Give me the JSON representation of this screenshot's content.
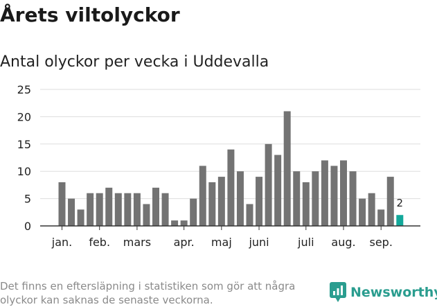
{
  "page": {
    "title": "Årets viltolyckor",
    "subtitle": "Antal olyckor per vecka i Uddevalla",
    "footnote": "Det finns en eftersläpning i statistiken som gör att några olyckor kan saknas de senaste veckorna."
  },
  "brand": {
    "name": "Newsworthy",
    "icon": "newsworthy-logo-icon",
    "color": "#2a9d8f"
  },
  "colors": {
    "bar": "#737373",
    "highlight": "#12a89a",
    "grid": "#dddddd",
    "axis": "#333333",
    "text": "#222222"
  },
  "chart_data": {
    "type": "bar",
    "title": "",
    "xlabel": "",
    "ylabel": "",
    "ylim": [
      0,
      25
    ],
    "yticks": [
      0,
      5,
      10,
      15,
      20,
      25
    ],
    "grid": true,
    "values": [
      8,
      5,
      3,
      6,
      6,
      7,
      6,
      6,
      6,
      4,
      7,
      6,
      1,
      1,
      5,
      11,
      8,
      9,
      14,
      10,
      4,
      9,
      15,
      13,
      21,
      10,
      8,
      10,
      12,
      11,
      12,
      10,
      5,
      6,
      3,
      9,
      2
    ],
    "highlight_last": true,
    "last_value_label": "2",
    "month_labels": [
      {
        "label": "jan.",
        "week": 1
      },
      {
        "label": "feb.",
        "week": 5
      },
      {
        "label": "mars",
        "week": 9
      },
      {
        "label": "apr.",
        "week": 14
      },
      {
        "label": "maj",
        "week": 18
      },
      {
        "label": "juni",
        "week": 22
      },
      {
        "label": "juli",
        "week": 27
      },
      {
        "label": "aug.",
        "week": 31
      },
      {
        "label": "sep.",
        "week": 35
      }
    ]
  }
}
